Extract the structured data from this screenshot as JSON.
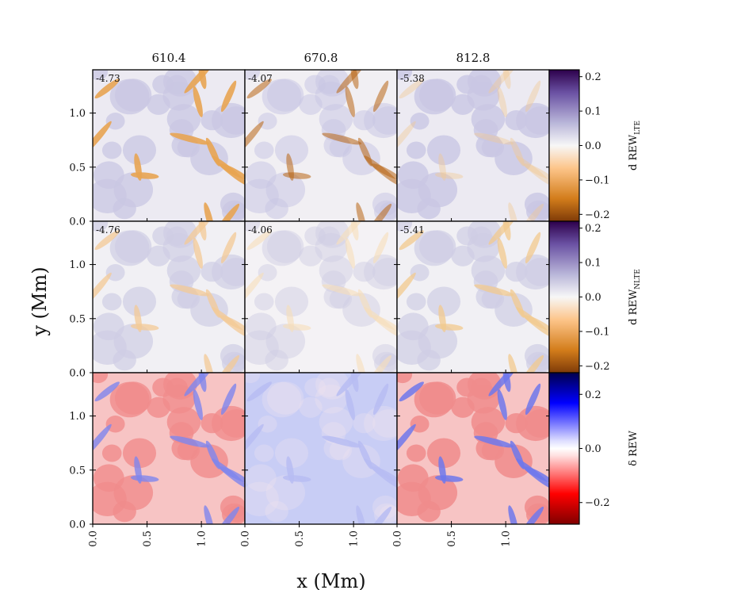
{
  "figure": {
    "column_titles": [
      "610.4",
      "670.8",
      "812.8"
    ],
    "xlabel": "x (Mm)",
    "ylabel": "y (Mm)",
    "x_tick_labels": [
      "0.0",
      "0.5",
      "1.0"
    ],
    "y_tick_labels": [
      "0.0",
      "0.5",
      "1.0"
    ],
    "corner_values": [
      [
        "-4.73",
        "-4.07",
        "-5.38"
      ],
      [
        "-4.76",
        "-4.06",
        "-5.41"
      ]
    ],
    "colorbars": [
      {
        "label_main": "d REW",
        "label_sub": "LTE",
        "ticks": [
          "0.2",
          "0.1",
          "0.0",
          "−0.1",
          "−0.2"
        ],
        "colormap": "PuOr"
      },
      {
        "label_main": "d REW",
        "label_sub": "NLTE",
        "ticks": [
          "0.2",
          "0.1",
          "0.0",
          "−0.1",
          "−0.2"
        ],
        "colormap": "PuOr"
      },
      {
        "label_main": "δ REW",
        "label_sub": "",
        "ticks": [
          "0.2",
          "0.0",
          "−0.2"
        ],
        "colormap": "seismic"
      }
    ]
  },
  "chart_data": {
    "type": "heatmap",
    "grid": {
      "rows": 3,
      "cols": 3
    },
    "x_range_Mm": [
      0.0,
      1.4
    ],
    "y_range_Mm": [
      0.0,
      1.4
    ],
    "x_ticks": [
      0.0,
      0.5,
      1.0
    ],
    "y_ticks": [
      0.0,
      0.5,
      1.0
    ],
    "columns_wavelength": [
      "610.4",
      "670.8",
      "812.8"
    ],
    "rows": [
      {
        "quantity": "d REW_LTE",
        "clim": [
          -0.22,
          0.22
        ],
        "colorbar_ticks": [
          -0.2,
          -0.1,
          0.0,
          0.1,
          0.2
        ],
        "colormap": "PuOr"
      },
      {
        "quantity": "d REW_NLTE",
        "clim": [
          -0.22,
          0.22
        ],
        "colorbar_ticks": [
          -0.2,
          -0.1,
          0.0,
          0.1,
          0.2
        ],
        "colormap": "PuOr"
      },
      {
        "quantity": "δ REW",
        "clim": [
          -0.28,
          0.28
        ],
        "colorbar_ticks": [
          -0.2,
          0.0,
          0.2
        ],
        "colormap": "seismic"
      }
    ],
    "panel_annotations": [
      [
        "-4.73",
        "-4.07",
        "-5.38"
      ],
      [
        "-4.76",
        "-4.06",
        "-5.41"
      ],
      [
        "",
        "",
        ""
      ]
    ]
  }
}
